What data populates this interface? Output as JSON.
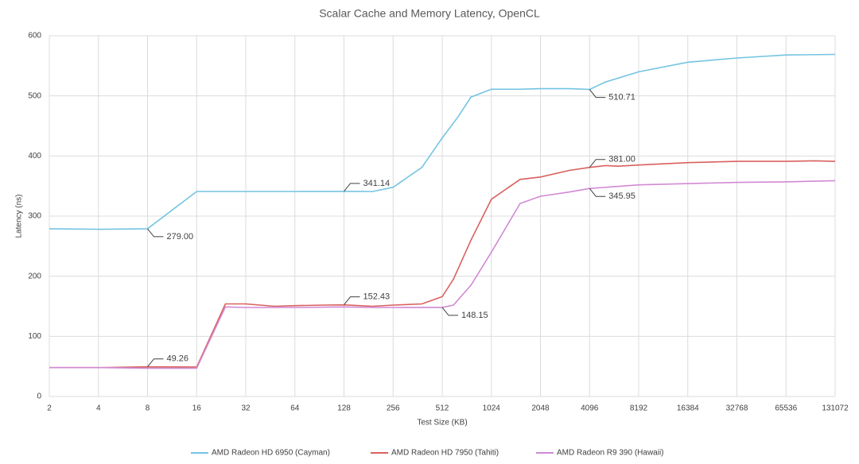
{
  "chart_data": {
    "type": "line",
    "title": "Scalar Cache and Memory Latency, OpenCL",
    "x_label": "Test Size (KB)",
    "y_label": "Latency (ns)",
    "log_x": 2,
    "grid": true,
    "legend": "bottom",
    "xlim": [
      2,
      131072
    ],
    "xticks": [
      2,
      4,
      8,
      16,
      32,
      64,
      128,
      256,
      512,
      1024,
      2048,
      4096,
      8192,
      16384,
      32768,
      65536,
      131072
    ],
    "ylim": [
      0,
      600
    ],
    "yticks": [
      0,
      100,
      200,
      300,
      400,
      500,
      600
    ],
    "series": [
      {
        "name": "AMD Radeon HD 6950 (Cayman)",
        "color": "#74c4e2",
        "x": [
          2,
          4,
          8,
          16,
          32,
          64,
          128,
          192,
          256,
          384,
          512,
          640,
          768,
          1024,
          1536,
          2048,
          3072,
          4096,
          5120,
          8192,
          16384,
          32768,
          65536,
          131072
        ],
        "values": [
          279,
          278,
          279,
          341,
          341,
          341,
          341.14,
          341,
          348,
          381,
          430,
          465,
          498,
          511,
          511,
          512,
          512,
          510.71,
          523,
          540,
          556,
          563,
          568,
          569
        ],
        "value_labels": [
          null,
          null,
          "279.00",
          null,
          null,
          null,
          "341.14",
          null,
          null,
          null,
          null,
          null,
          null,
          null,
          null,
          null,
          null,
          "510.71",
          null,
          null,
          null,
          null,
          null,
          null
        ]
      },
      {
        "name": "AMD Radeon HD 7950 (Tahiti)",
        "color": "#d9605f",
        "x": [
          2,
          4,
          8,
          16,
          24,
          32,
          48,
          64,
          96,
          128,
          192,
          256,
          384,
          512,
          600,
          768,
          1024,
          1536,
          2048,
          3072,
          4096,
          5120,
          6144,
          8192,
          16384,
          32768,
          65536,
          98304,
          131072
        ],
        "values": [
          48,
          48,
          49.26,
          49,
          154,
          154,
          150,
          151,
          152,
          152.43,
          150,
          152,
          154,
          166,
          195,
          260,
          328,
          361,
          365,
          376,
          381.0,
          384,
          383,
          385,
          389,
          391,
          391,
          392,
          391
        ],
        "value_labels": [
          null,
          null,
          "49.26",
          null,
          null,
          null,
          null,
          null,
          null,
          "152.43",
          null,
          null,
          null,
          null,
          null,
          null,
          null,
          null,
          null,
          null,
          "381.00",
          null,
          null,
          null,
          null,
          null,
          null,
          null,
          null
        ]
      },
      {
        "name": "AMD Radeon R9 390 (Hawaii)",
        "color": "#d18ad4",
        "x": [
          2,
          4,
          8,
          16,
          24,
          32,
          64,
          128,
          192,
          256,
          512,
          600,
          768,
          1024,
          1536,
          2048,
          3072,
          4096,
          8192,
          16384,
          32768,
          65536,
          131072
        ],
        "values": [
          48,
          48,
          47,
          47,
          149,
          148,
          148,
          149,
          148,
          148,
          148.15,
          152,
          185,
          240,
          321,
          333,
          340,
          345.95,
          352,
          354,
          356,
          357,
          359
        ],
        "value_labels": [
          null,
          null,
          null,
          null,
          null,
          null,
          null,
          null,
          null,
          null,
          "148.15",
          null,
          null,
          null,
          null,
          null,
          null,
          "345.95",
          null,
          null,
          null,
          null,
          null
        ]
      }
    ]
  }
}
